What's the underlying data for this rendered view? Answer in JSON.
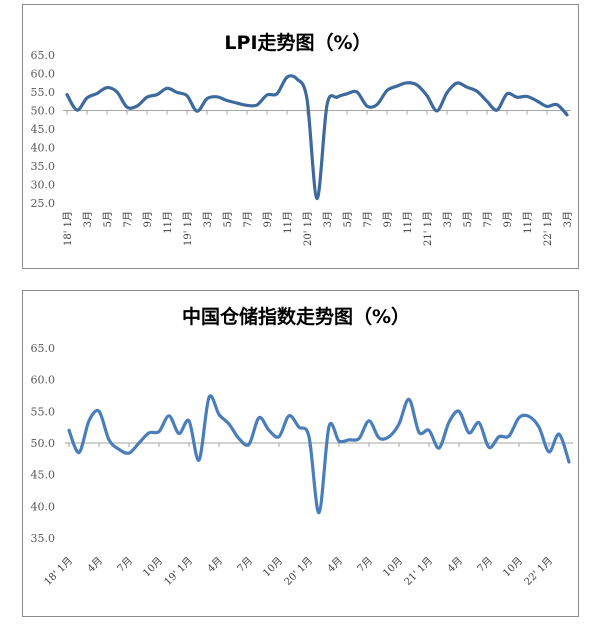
{
  "chart_data": [
    {
      "type": "line",
      "title": "LPI走势图（%）",
      "xlabel": "",
      "ylabel": "",
      "ylim": [
        25.0,
        65.0
      ],
      "y_ticks": [
        "65.0",
        "60.0",
        "55.0",
        "50.0",
        "45.0",
        "40.0",
        "35.0",
        "30.0",
        "25.0"
      ],
      "x_tick_labels": [
        "18'  1月",
        "3月",
        "5月",
        "7月",
        "9月",
        "11月",
        "19'  1月",
        "3月",
        "5月",
        "7月",
        "9月",
        "11月",
        "20'  1月",
        "3月",
        "5月",
        "7月",
        "9月",
        "11月",
        "21'  1月",
        "3月",
        "5月",
        "7月",
        "9月",
        "11月",
        "22'  1月",
        "3月"
      ],
      "grid": false,
      "line_color": "#3d6a9c",
      "series": [
        {
          "values": [
            54.3,
            50.1,
            53.4,
            54.6,
            56.2,
            55.0,
            50.9,
            51.2,
            53.6,
            54.3,
            56.0,
            54.9,
            54.0,
            49.8,
            53.2,
            53.7,
            52.7,
            52.0,
            51.4,
            51.5,
            54.2,
            54.5,
            59.0,
            58.5,
            53.1,
            26.2,
            51.5,
            53.6,
            54.5,
            55.0,
            51.2,
            51.6,
            55.4,
            56.6,
            57.5,
            56.9,
            54.0,
            49.9,
            54.8,
            57.4,
            56.3,
            55.2,
            52.5,
            50.1,
            54.5,
            53.6,
            53.8,
            52.6,
            51.1,
            51.6,
            48.8
          ]
        }
      ]
    },
    {
      "type": "line",
      "title": "中国仓储指数走势图（%）",
      "xlabel": "",
      "ylabel": "",
      "ylim": [
        35.0,
        65.0
      ],
      "y_ticks": [
        "65.0",
        "60.0",
        "55.0",
        "50.0",
        "45.0",
        "40.0",
        "35.0"
      ],
      "x_tick_labels": [
        "18'  1月",
        "4月",
        "7月",
        "10月",
        "19'  1月",
        "4月",
        "7月",
        "10月",
        "20'  1月",
        "4月",
        "7月",
        "10月",
        "21'  1月",
        "4月",
        "7月",
        "10月",
        "22'  1月"
      ],
      "grid": false,
      "line_color": "#4a7ebb",
      "series": [
        {
          "values": [
            52.0,
            48.5,
            53.5,
            55.0,
            50.5,
            49.0,
            48.4,
            50.0,
            51.6,
            51.8,
            54.3,
            51.5,
            53.5,
            47.3,
            57.2,
            54.5,
            53.0,
            50.7,
            49.8,
            54.0,
            52.0,
            51.0,
            54.3,
            52.5,
            51.0,
            39.0,
            52.6,
            50.3,
            50.5,
            50.7,
            53.5,
            50.8,
            51.0,
            53.0,
            56.9,
            51.7,
            52.0,
            49.2,
            53.3,
            55.0,
            51.6,
            53.2,
            49.3,
            51.0,
            51.1,
            54.0,
            54.2,
            52.5,
            48.6,
            51.4,
            47.0
          ]
        }
      ]
    }
  ]
}
